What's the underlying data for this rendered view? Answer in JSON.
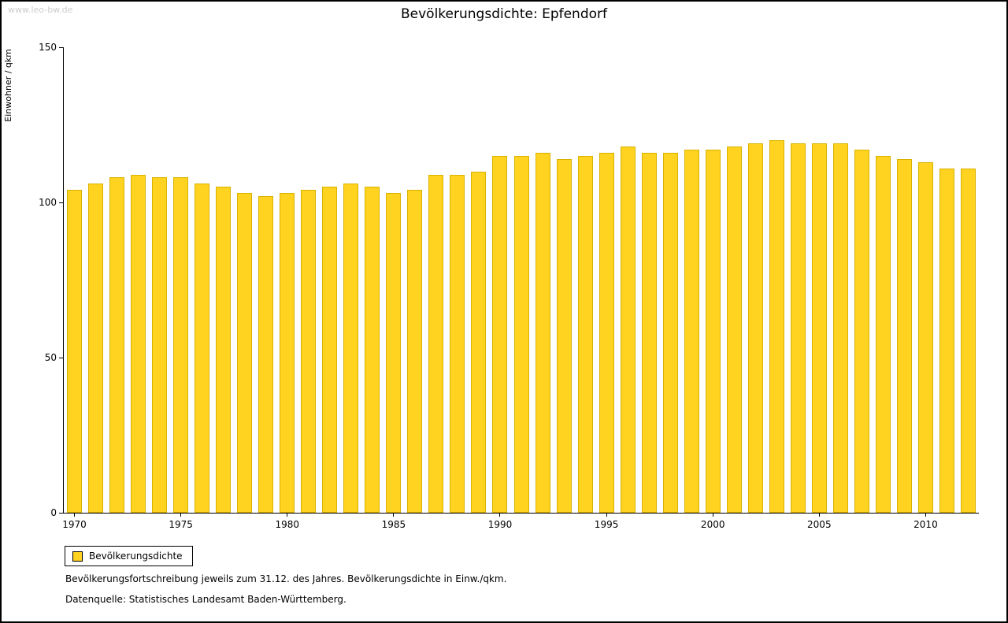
{
  "watermark": "www.leo-bw.de",
  "legend": {
    "label": "Bevölkerungsdichte"
  },
  "captions": {
    "line1": "Bevölkerungsfortschreibung jeweils zum 31.12. des Jahres. Bevölkerungsdichte in Einw./qkm.",
    "line2": "Datenquelle: Statistisches Landesamt Baden-Württemberg."
  },
  "colors": {
    "bar_fill": "#FFD320",
    "bar_border": "#d9b200",
    "axis": "#000000",
    "watermark": "#cccccc"
  },
  "chart_data": {
    "type": "bar",
    "title": "Bevölkerungsdichte: Epfendorf",
    "xlabel": "",
    "ylabel": "Einwohner / qkm",
    "ylim": [
      0,
      150
    ],
    "yticks": [
      0,
      50,
      100,
      150
    ],
    "xticks": [
      1970,
      1975,
      1980,
      1985,
      1990,
      1995,
      2000,
      2005,
      2010
    ],
    "grid": false,
    "legend_position": "bottom-left",
    "legend_entries": [
      "Bevölkerungsdichte"
    ],
    "categories": [
      1970,
      1971,
      1972,
      1973,
      1974,
      1975,
      1976,
      1977,
      1978,
      1979,
      1980,
      1981,
      1982,
      1983,
      1984,
      1985,
      1986,
      1987,
      1988,
      1989,
      1990,
      1991,
      1992,
      1993,
      1994,
      1995,
      1996,
      1997,
      1998,
      1999,
      2000,
      2001,
      2002,
      2003,
      2004,
      2005,
      2006,
      2007,
      2008,
      2009,
      2010,
      2011,
      2012
    ],
    "values": [
      104,
      106,
      108,
      109,
      108,
      108,
      106,
      105,
      103,
      102,
      103,
      104,
      105,
      106,
      105,
      103,
      104,
      109,
      109,
      110,
      115,
      115,
      116,
      114,
      115,
      116,
      118,
      116,
      116,
      117,
      117,
      118,
      119,
      120,
      119,
      119,
      119,
      117,
      115,
      114,
      113,
      111,
      111
    ]
  }
}
